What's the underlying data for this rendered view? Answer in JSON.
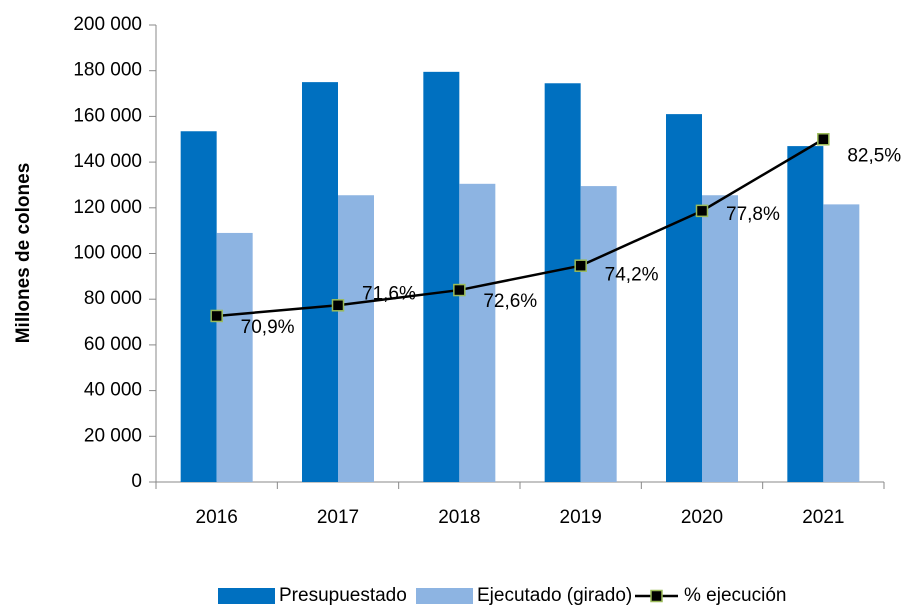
{
  "chart_data": {
    "type": "bar_line",
    "y_label": "Millones de colones",
    "categories": [
      "2016",
      "2017",
      "2018",
      "2019",
      "2020",
      "2021"
    ],
    "series": [
      {
        "name": "Presupuestado",
        "color": "#0070c0",
        "type": "bar",
        "values": [
          153500,
          175000,
          179500,
          174500,
          161000,
          147000
        ]
      },
      {
        "name": "Ejecutado (girado)",
        "color": "#8db4e2",
        "type": "bar",
        "values": [
          109000,
          125500,
          130500,
          129500,
          125500,
          121500
        ]
      },
      {
        "name": "% ejecución",
        "color": "#000000",
        "marker_edge": "#9bbb59",
        "type": "line",
        "axis": "y2",
        "values": [
          70.9,
          71.6,
          72.6,
          74.2,
          77.8,
          82.5
        ],
        "value_labels": [
          "70,9%",
          "71,6%",
          "72,6%",
          "74,2%",
          "77,8%",
          "82,5%"
        ]
      }
    ],
    "ylim": [
      0,
      200000
    ],
    "yticks": [
      0,
      {
        "value": 20000,
        "label": "20 000"
      },
      {
        "value": 40000,
        "label": "40 000"
      },
      {
        "value": 60000,
        "label": "60 000"
      },
      {
        "value": 80000,
        "label": "80 000"
      },
      {
        "value": 100000,
        "label": "100 000"
      },
      {
        "value": 120000,
        "label": "120 000"
      },
      {
        "value": 140000,
        "label": "140 000"
      },
      {
        "value": 160000,
        "label": "160 000"
      },
      {
        "value": 180000,
        "label": "180 000"
      },
      {
        "value": 200000,
        "label": "200 000"
      }
    ],
    "y2lim": [
      60,
      90
    ],
    "legend": "bottom"
  }
}
